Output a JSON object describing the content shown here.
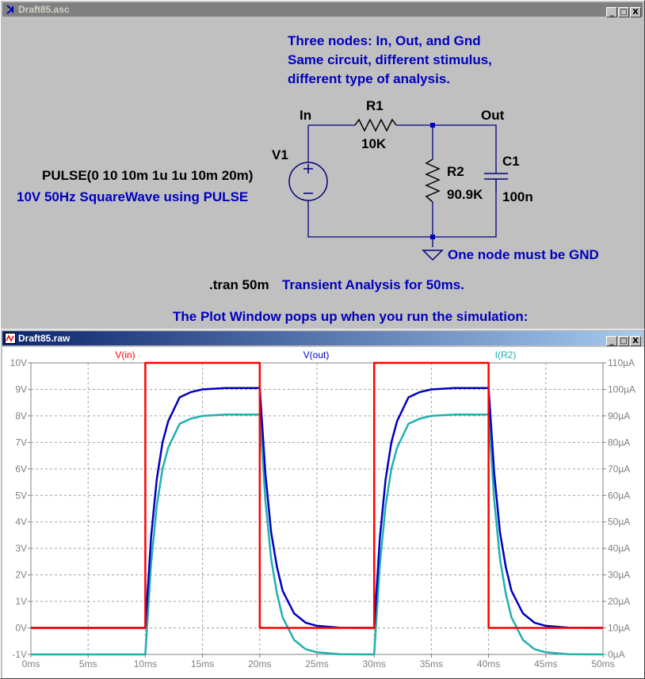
{
  "schematic_window": {
    "title": "Draft85.asc",
    "buttons": [
      "_",
      "□",
      "X"
    ],
    "notes": {
      "line1": "Three nodes: In, Out, and Gnd",
      "line2": "Same circuit, different stimulus,",
      "line3": "different type of analysis."
    },
    "labels": {
      "in_node": "In",
      "out_node": "Out",
      "r1_name": "R1",
      "r1_value": "10K",
      "r2_name": "R2",
      "r2_value": "90.9K",
      "c1_name": "C1",
      "c1_value": "100n",
      "v1_name": "V1",
      "v1_value": "PULSE(0 10 10m 1u 1u 10m 20m)",
      "v1_comment": "10V 50Hz SquareWave using PULSE",
      "gnd_comment": "One node must be GND",
      "tran_directive": ".tran 50m",
      "tran_comment": "Transient Analysis for 50ms.",
      "plot_note": "The Plot Window pops up when you run the simulation:"
    }
  },
  "plot_window": {
    "title": "Draft85.raw",
    "buttons": [
      "_",
      "□",
      "X"
    ]
  },
  "colors": {
    "v_in": "#ff0000",
    "v_out": "#0000c0",
    "i_r2": "#20b0b0",
    "wire": "#000080",
    "node_dot": "#0000c0"
  },
  "chart_data": {
    "type": "line",
    "x_label_ticks": [
      "0ms",
      "5ms",
      "10ms",
      "15ms",
      "20ms",
      "25ms",
      "30ms",
      "35ms",
      "40ms",
      "45ms",
      "50ms"
    ],
    "xlim": [
      0,
      50
    ],
    "left_ticks": [
      "10V",
      "9V",
      "8V",
      "7V",
      "6V",
      "5V",
      "4V",
      "3V",
      "2V",
      "1V",
      "0V",
      "-1V"
    ],
    "ylim_left": [
      -1,
      10
    ],
    "right_ticks": [
      "110µA",
      "100µA",
      "90µA",
      "80µA",
      "70µA",
      "60µA",
      "50µA",
      "40µA",
      "30µA",
      "20µA",
      "10µA",
      "0µA"
    ],
    "ylim_right": [
      0,
      110
    ],
    "grid": true,
    "series": [
      {
        "name": "V(in)",
        "axis": "left",
        "x": [
          0,
          10,
          10,
          20,
          20,
          30,
          30,
          40,
          40,
          50
        ],
        "y": [
          0,
          0,
          10,
          10,
          0,
          0,
          10,
          10,
          0,
          0
        ]
      },
      {
        "name": "V(out)",
        "axis": "left",
        "x": [
          0,
          10,
          10.5,
          11,
          11.5,
          12,
          13,
          14,
          15,
          17,
          20,
          20.5,
          21,
          21.5,
          22,
          23,
          24,
          25,
          27,
          30,
          30.5,
          31,
          31.5,
          32,
          33,
          34,
          35,
          37,
          40,
          40.5,
          41,
          41.5,
          42,
          43,
          44,
          45,
          47,
          50
        ],
        "y": [
          0,
          0,
          3.4,
          5.6,
          7.0,
          7.8,
          8.7,
          8.9,
          9.0,
          9.05,
          9.05,
          5.8,
          3.6,
          2.3,
          1.4,
          0.55,
          0.2,
          0.08,
          0.01,
          0,
          3.4,
          5.6,
          7.0,
          7.8,
          8.7,
          8.9,
          9.0,
          9.05,
          9.05,
          5.8,
          3.6,
          2.3,
          1.4,
          0.55,
          0.2,
          0.08,
          0.01,
          0
        ]
      },
      {
        "name": "I(R2)",
        "axis": "right",
        "x": [
          0,
          10,
          10.5,
          11,
          11.5,
          12,
          13,
          14,
          15,
          17,
          20,
          20.5,
          21,
          21.5,
          22,
          23,
          24,
          25,
          27,
          30,
          30.5,
          31,
          31.5,
          32,
          33,
          34,
          35,
          37,
          40,
          40.5,
          41,
          41.5,
          42,
          43,
          44,
          45,
          47,
          50
        ],
        "y": [
          0,
          0,
          34,
          56,
          70,
          78,
          87,
          89,
          90,
          90.5,
          90.5,
          58,
          36,
          23,
          14,
          5.5,
          2,
          0.8,
          0.1,
          0,
          34,
          56,
          70,
          78,
          87,
          89,
          90,
          90.5,
          90.5,
          58,
          36,
          23,
          14,
          5.5,
          2,
          0.8,
          0.1,
          0
        ]
      }
    ]
  }
}
